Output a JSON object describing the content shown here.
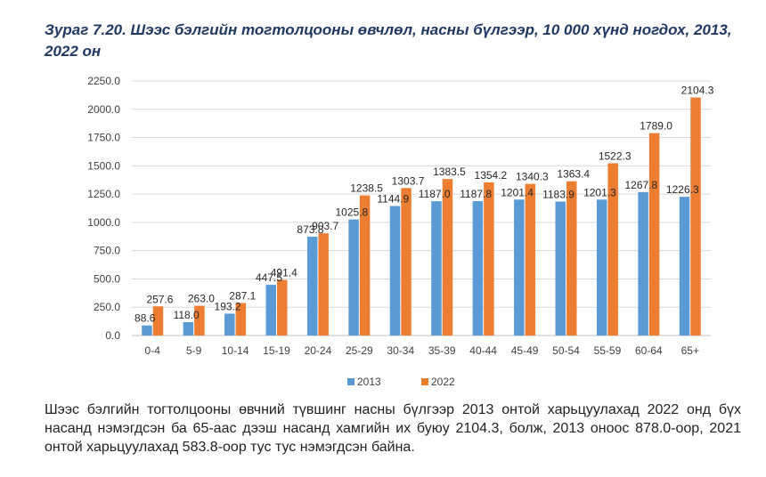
{
  "chart_data": {
    "type": "bar",
    "title": "Зураг 7.20. Шээс бэлгийн тогтолцооны өвчлөл, насны бүлгээр, 10 000 хүнд ногдох, 2013, 2022 он",
    "categories": [
      "0-4",
      "5-9",
      "10-14",
      "15-19",
      "20-24",
      "25-29",
      "30-34",
      "35-39",
      "40-44",
      "45-49",
      "50-54",
      "55-59",
      "60-64",
      "65+"
    ],
    "series": [
      {
        "name": "2013",
        "color": "#5b9bd5",
        "values": [
          88.6,
          118.0,
          193.2,
          447.5,
          873.8,
          1025.8,
          1144.9,
          1187.0,
          1187.8,
          1201.4,
          1183.9,
          1201.3,
          1267.8,
          1226.3
        ]
      },
      {
        "name": "2022",
        "color": "#ed7d31",
        "values": [
          257.6,
          263.0,
          287.1,
          491.4,
          903.7,
          1238.5,
          1303.7,
          1383.5,
          1354.2,
          1340.3,
          1363.4,
          1522.3,
          1789.0,
          2104.3
        ]
      }
    ],
    "ylim": [
      0,
      2250
    ],
    "yticks": [
      "0.0",
      "250.0",
      "500.0",
      "750.0",
      "1000.0",
      "1250.0",
      "1500.0",
      "1750.0",
      "2000.0",
      "2250.0"
    ],
    "legend": "bottom",
    "grid": true,
    "xlabel": "",
    "ylabel": ""
  },
  "description": "Шээс бэлгийн тогтолцооны өвчний түвшинг насны бүлгээр 2013 онтой харьцуулахад 2022 онд бүх насанд нэмэгдсэн ба 65-аас дээш насанд хамгийн их буюу 2104.3, болж, 2013 оноос 878.0-оор, 2021 онтой харьцуулахад 583.8-оор тус тус нэмэгдсэн байна."
}
